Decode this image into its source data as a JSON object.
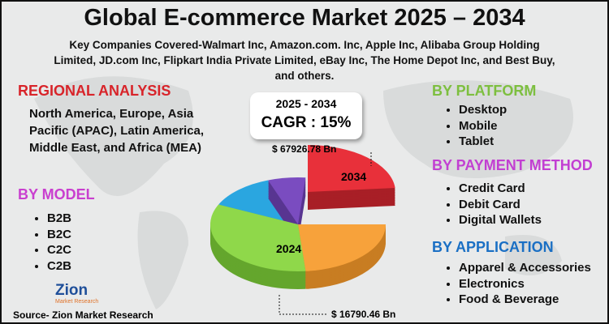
{
  "header": {
    "title": "Global E-commerce Market 2025 – 2034",
    "subtitle": "Key Companies Covered-Walmart Inc, Amazon.com. Inc, Apple Inc, Alibaba Group Holding Limited, JD.com Inc, Flipkart India Private Limited, eBay Inc, The Home Depot Inc, and Best Buy, and others."
  },
  "regional": {
    "heading": "REGIONAL ANALYSIS",
    "text": "North America, Europe, Asia Pacific (APAC), Latin America, Middle East, and Africa (MEA)"
  },
  "model": {
    "heading": "BY MODEL",
    "items": [
      "B2B",
      "B2C",
      "C2C",
      "C2B"
    ]
  },
  "platform": {
    "heading": "BY PLATFORM",
    "items": [
      "Desktop",
      "Mobile",
      "Tablet"
    ]
  },
  "payment": {
    "heading": "BY PAYMENT METHOD",
    "items": [
      "Credit Card",
      "Debit Card",
      "Digital Wallets"
    ]
  },
  "application": {
    "heading": "BY APPLICATION",
    "items": [
      "Apparel & Accessories",
      "Electronics",
      "Food & Beverage"
    ]
  },
  "cagr": {
    "period": "2025 - 2034",
    "text": "CAGR : 15%"
  },
  "pie": {
    "end_value": "$ 67926.78 Bn",
    "end_year": "2034",
    "start_year": "2024",
    "start_value": "$ 16790.46 Bn"
  },
  "logo": {
    "name": "Zion",
    "sub": "Market Research"
  },
  "source": "Source- Zion Market Research"
}
